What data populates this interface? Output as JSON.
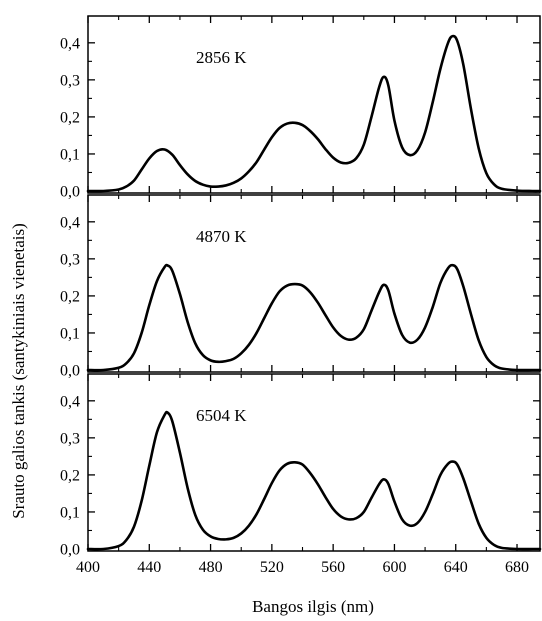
{
  "chart_data": {
    "type": "line",
    "layout": "stacked-panels",
    "shared_x": true,
    "xlabel": "Bangos ilgis (nm)",
    "ylabel": "Srauto galios tankis (santykiniais vienetais)",
    "xlim": [
      400,
      695
    ],
    "x_ticks": [
      400,
      440,
      480,
      520,
      560,
      600,
      640,
      680
    ],
    "x_tick_labels": [
      "400",
      "440",
      "480",
      "520",
      "560",
      "600",
      "640",
      "680"
    ],
    "grid": false,
    "panels": [
      {
        "label": "2856 K",
        "ylim": [
          0,
          0.44
        ],
        "y_ticks": [
          0.0,
          0.1,
          0.2,
          0.3,
          0.4
        ],
        "y_tick_labels": [
          "0,0",
          "0,1",
          "0,2",
          "0,3",
          "0,4"
        ],
        "series": [
          {
            "x": [
              400,
              410,
              420,
              425,
              430,
              435,
              440,
              445,
              450,
              455,
              460,
              465,
              470,
              475,
              480,
              485,
              490,
              495,
              500,
              505,
              510,
              515,
              520,
              525,
              530,
              535,
              540,
              545,
              550,
              555,
              560,
              565,
              570,
              575,
              580,
              585,
              590,
              593,
              596,
              600,
              605,
              610,
              615,
              620,
              625,
              630,
              635,
              638,
              641,
              645,
              650,
              655,
              660,
              665,
              670,
              680,
              690,
              695
            ],
            "y": [
              0.0,
              0.0,
              0.004,
              0.012,
              0.028,
              0.058,
              0.088,
              0.108,
              0.112,
              0.098,
              0.07,
              0.045,
              0.027,
              0.017,
              0.012,
              0.012,
              0.015,
              0.022,
              0.034,
              0.053,
              0.078,
              0.112,
              0.145,
              0.17,
              0.182,
              0.184,
              0.178,
              0.162,
              0.14,
              0.113,
              0.09,
              0.077,
              0.076,
              0.088,
              0.125,
              0.2,
              0.28,
              0.308,
              0.285,
              0.19,
              0.118,
              0.097,
              0.11,
              0.158,
              0.24,
              0.33,
              0.4,
              0.418,
              0.405,
              0.34,
              0.22,
              0.115,
              0.048,
              0.018,
              0.006,
              0.001,
              0.0,
              0.0
            ]
          }
        ]
      },
      {
        "label": "4870 K",
        "ylim": [
          0,
          0.44
        ],
        "y_ticks": [
          0.0,
          0.1,
          0.2,
          0.3,
          0.4
        ],
        "y_tick_labels": [
          "0,0",
          "0,1",
          "0,2",
          "0,3",
          "0,4"
        ],
        "series": [
          {
            "x": [
              400,
              410,
              420,
              425,
              430,
              435,
              440,
              445,
              450,
              452,
              455,
              460,
              465,
              470,
              475,
              480,
              485,
              490,
              495,
              500,
              505,
              510,
              515,
              520,
              525,
              530,
              535,
              540,
              545,
              550,
              555,
              560,
              565,
              570,
              575,
              580,
              585,
              590,
              593,
              596,
              600,
              605,
              610,
              615,
              620,
              625,
              630,
              635,
              638,
              641,
              645,
              650,
              655,
              660,
              665,
              670,
              680,
              690,
              695
            ],
            "y": [
              0.0,
              0.0,
              0.006,
              0.018,
              0.045,
              0.1,
              0.175,
              0.24,
              0.278,
              0.282,
              0.268,
              0.205,
              0.13,
              0.072,
              0.04,
              0.026,
              0.022,
              0.024,
              0.03,
              0.045,
              0.068,
              0.1,
              0.14,
              0.18,
              0.212,
              0.228,
              0.232,
              0.228,
              0.21,
              0.182,
              0.148,
              0.115,
              0.092,
              0.082,
              0.087,
              0.11,
              0.16,
              0.21,
              0.23,
              0.215,
              0.152,
              0.095,
              0.074,
              0.082,
              0.115,
              0.17,
              0.235,
              0.275,
              0.283,
              0.272,
              0.225,
              0.15,
              0.08,
              0.035,
              0.013,
              0.004,
              0.0,
              0.0,
              0.0
            ]
          }
        ]
      },
      {
        "label": "6504 K",
        "ylim": [
          0,
          0.44
        ],
        "y_ticks": [
          0.0,
          0.1,
          0.2,
          0.3,
          0.4
        ],
        "y_tick_labels": [
          "0,0",
          "0,1",
          "0,2",
          "0,3",
          "0,4"
        ],
        "series": [
          {
            "x": [
              400,
              410,
              420,
              425,
              430,
              435,
              440,
              445,
              450,
              452,
              455,
              460,
              465,
              470,
              475,
              480,
              485,
              490,
              495,
              500,
              505,
              510,
              515,
              520,
              525,
              530,
              535,
              540,
              545,
              550,
              555,
              560,
              565,
              570,
              575,
              580,
              585,
              590,
              593,
              596,
              600,
              605,
              610,
              615,
              620,
              625,
              630,
              635,
              638,
              641,
              645,
              650,
              655,
              660,
              665,
              670,
              680,
              690,
              695
            ],
            "y": [
              0.0,
              0.0,
              0.008,
              0.024,
              0.06,
              0.13,
              0.225,
              0.315,
              0.362,
              0.368,
              0.345,
              0.26,
              0.165,
              0.092,
              0.052,
              0.034,
              0.027,
              0.026,
              0.03,
              0.042,
              0.063,
              0.094,
              0.135,
              0.178,
              0.212,
              0.23,
              0.234,
              0.228,
              0.205,
              0.175,
              0.14,
              0.108,
              0.088,
              0.08,
              0.083,
              0.1,
              0.138,
              0.175,
              0.188,
              0.176,
              0.128,
              0.08,
              0.063,
              0.07,
              0.1,
              0.148,
              0.2,
              0.23,
              0.236,
              0.228,
              0.19,
              0.128,
              0.068,
              0.03,
              0.011,
              0.003,
              0.0,
              0.0,
              0.0
            ]
          }
        ]
      }
    ]
  }
}
